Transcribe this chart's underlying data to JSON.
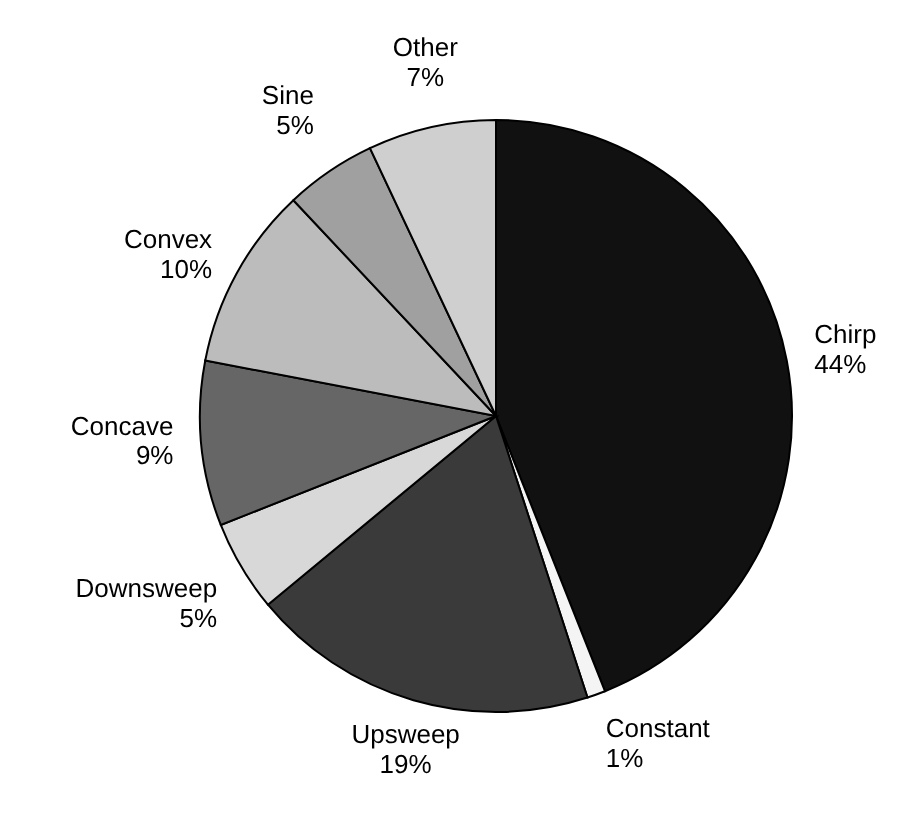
{
  "chart_data": {
    "type": "pie",
    "categories": [
      "Chirp",
      "Constant",
      "Upsweep",
      "Downsweep",
      "Concave",
      "Convex",
      "Sine",
      "Other"
    ],
    "values": [
      44,
      1,
      19,
      5,
      9,
      10,
      5,
      7
    ],
    "value_labels": [
      "44%",
      "1%",
      "19%",
      "5%",
      "9%",
      "10%",
      "5%",
      "7%"
    ],
    "colors": [
      "#111111",
      "#f4f4f4",
      "#3a3a3a",
      "#d8d8d8",
      "#666666",
      "#bcbcbc",
      "#a0a0a0",
      "#cfcfcf"
    ]
  }
}
